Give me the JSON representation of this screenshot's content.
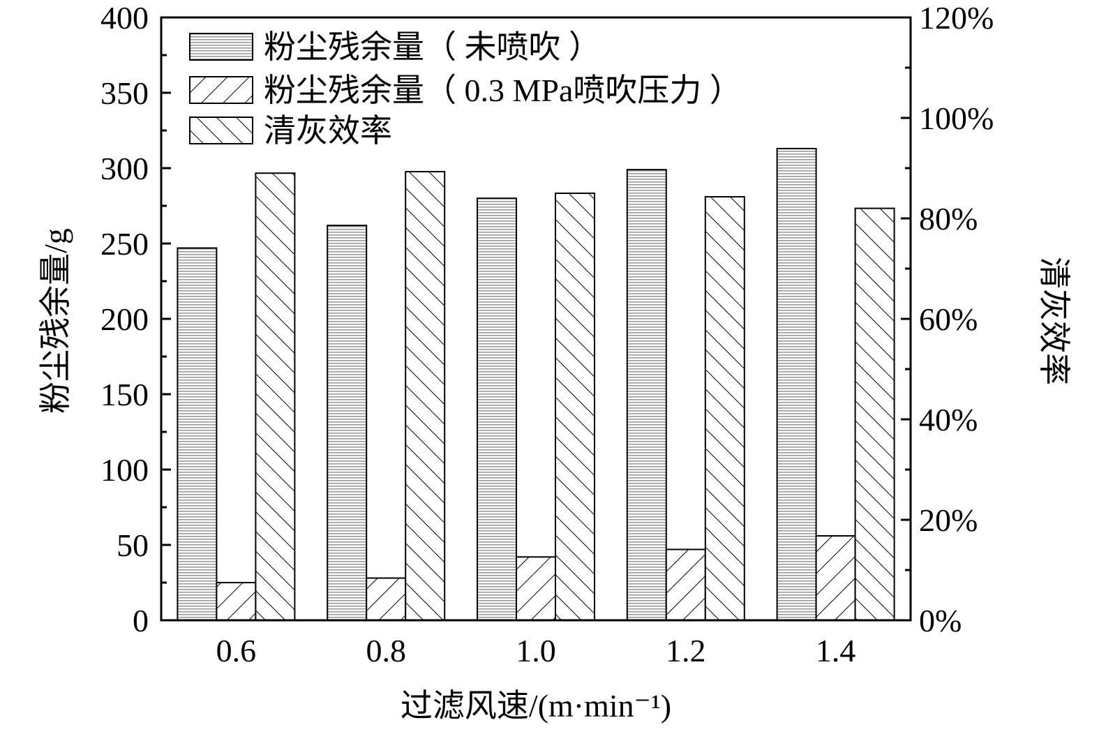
{
  "chart_data": {
    "type": "bar",
    "categories": [
      "0.6",
      "0.8",
      "1.0",
      "1.2",
      "1.4"
    ],
    "series": [
      {
        "name": "粉尘残余量（ 未喷吹 ）",
        "axis": "left",
        "pattern": "dots",
        "values": [
          247,
          262,
          280,
          299,
          313
        ]
      },
      {
        "name": "粉尘残余量（ 0.3 MPa喷吹压力 ）",
        "axis": "left",
        "pattern": "hatch-right",
        "values": [
          25,
          28,
          42,
          47,
          56
        ]
      },
      {
        "name": "清灰效率",
        "axis": "right",
        "pattern": "hatch-left",
        "values": [
          89,
          89.3,
          85,
          84.3,
          82
        ]
      }
    ],
    "xlabel": "过滤风速/(m·min⁻¹)",
    "ylabel": "粉尘残余量/g",
    "y2label": "清灰效率",
    "ylim": [
      0,
      400
    ],
    "y2lim": [
      0,
      120
    ],
    "yticks": [
      "0",
      "50",
      "100",
      "150",
      "200",
      "250",
      "300",
      "350",
      "400"
    ],
    "y2ticks": [
      "0%",
      "20%",
      "40%",
      "60%",
      "80%",
      "100%",
      "120%"
    ],
    "grid": false,
    "legend_position": "top-left"
  }
}
